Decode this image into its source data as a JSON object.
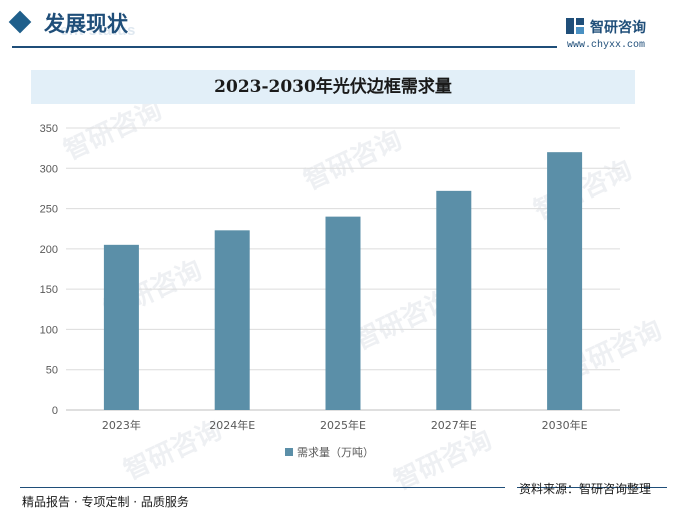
{
  "header": {
    "section_title": "发展现状",
    "section_subtitle": "ent status",
    "brand_name": "智研咨询",
    "brand_url": "www.chyxx.com"
  },
  "chart_data": {
    "type": "bar",
    "title": "2023-2030年光伏边框需求量",
    "categories": [
      "2023年",
      "2024年E",
      "2025年E",
      "2027年E",
      "2030年E"
    ],
    "series": [
      {
        "name": "需求量（万吨）",
        "values": [
          205,
          223,
          240,
          272,
          320
        ],
        "color": "#5b8fa8"
      }
    ],
    "ylim": [
      0,
      350
    ],
    "yticks": [
      "0",
      "50",
      "100",
      "150",
      "200",
      "250",
      "300",
      "350"
    ],
    "grid": true,
    "legend": "bottom"
  },
  "footer": {
    "left_text": "精品报告 · 专项定制 · 品质服务",
    "right_text": "资料来源：智研咨询整理"
  },
  "watermark": "智研咨询"
}
